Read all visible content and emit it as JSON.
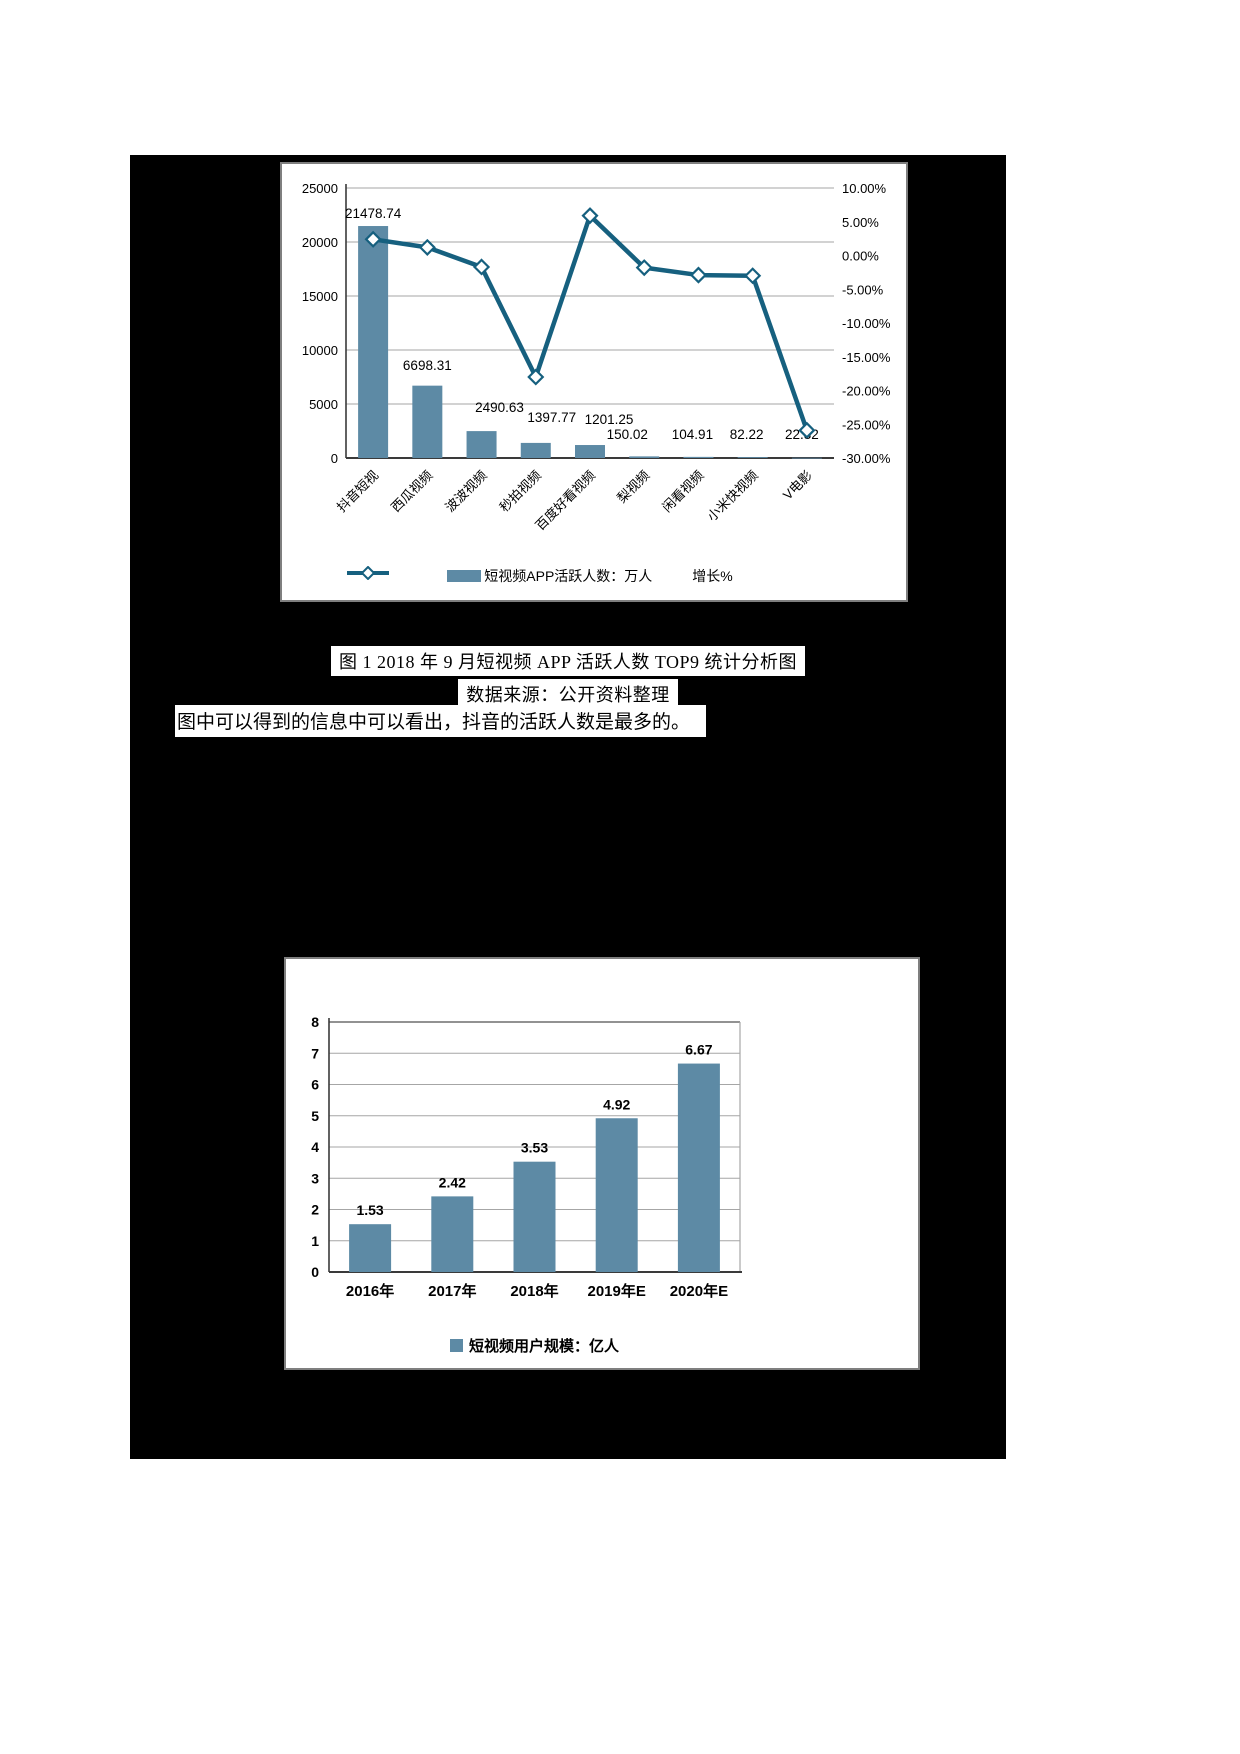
{
  "colors": {
    "page_background": "#ffffff",
    "content_background": "#000000",
    "panel_background": "#ffffff",
    "panel_border": "#7f7f7f",
    "bar_fill": "#5d8aa5",
    "line_stroke": "#16607f",
    "marker_fill": "#ffffff",
    "gridline": "#a6a6a6",
    "axis_line": "#3a3a3a",
    "text": "#000000"
  },
  "captions": {
    "figure1_title": "图 1  2018 年 9 月短视频 APP 活跃人数 TOP9 统计分析图",
    "figure1_source": "数据来源：公开资料整理",
    "figure1_note": "图中可以得到的信息中可以看出，抖音的活跃人数是最多的。"
  },
  "chart_data": [
    {
      "type": "combo-bar-line",
      "title": "",
      "categories": [
        "抖音短视",
        "西瓜视频",
        "波波视频",
        "秒拍视频",
        "百度好看视频",
        "梨视频",
        "闲看视频",
        "小米快视频",
        "V电影"
      ],
      "series": [
        {
          "name": "短视频APP活跃人数：万人",
          "type": "bar",
          "axis": "left",
          "values": [
            21478.74,
            6698.31,
            2490.63,
            1397.77,
            1201.25,
            150.02,
            104.91,
            82.22,
            22.32
          ],
          "data_labels": [
            "21478.74",
            "6698.31",
            "2490.63",
            "1397.77",
            "1201.25",
            "150.02",
            "104.91",
            "82.22",
            "22.32"
          ]
        },
        {
          "name": "增长%",
          "type": "line",
          "axis": "right",
          "values_estimated": true,
          "values": [
            2.4,
            1.2,
            -1.7,
            -18.0,
            5.9,
            -1.8,
            -2.9,
            -3.0,
            -25.9
          ]
        }
      ],
      "left_axis": {
        "ticks": [
          "25000",
          "20000",
          "15000",
          "10000",
          "5000",
          "0"
        ],
        "range": [
          0,
          25000
        ]
      },
      "right_axis": {
        "ticks": [
          "10.00%",
          "5.00%",
          "0.00%",
          "-5.00%",
          "-10.00%",
          "-15.00%",
          "-20.00%",
          "-25.00%",
          "-30.00%"
        ],
        "range": [
          -30,
          10
        ]
      },
      "legend_position": "bottom",
      "grid": true
    },
    {
      "type": "bar",
      "title": "",
      "categories": [
        "2016年",
        "2017年",
        "2018年",
        "2019年E",
        "2020年E"
      ],
      "values": [
        1.53,
        2.42,
        3.53,
        4.92,
        6.67
      ],
      "data_labels": [
        "1.53",
        "2.42",
        "3.53",
        "4.92",
        "6.67"
      ],
      "legend": "短视频用户规模：亿人",
      "y_axis": {
        "ticks": [
          "0",
          "1",
          "2",
          "3",
          "4",
          "5",
          "6",
          "7",
          "8"
        ],
        "range": [
          0,
          8
        ]
      },
      "legend_position": "bottom",
      "grid": true
    }
  ]
}
